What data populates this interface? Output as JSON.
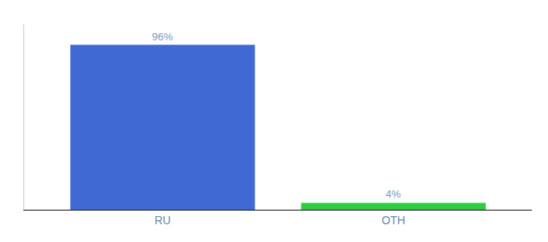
{
  "chart_data": {
    "type": "bar",
    "categories": [
      "RU",
      "OTH"
    ],
    "values": [
      96,
      4
    ],
    "value_labels": [
      "96%",
      "4%"
    ],
    "colors": [
      "#4169d4",
      "#2ecc40"
    ],
    "ylim": [
      0,
      108
    ],
    "grid": false,
    "data_labels": true,
    "tick_labels": "x"
  }
}
